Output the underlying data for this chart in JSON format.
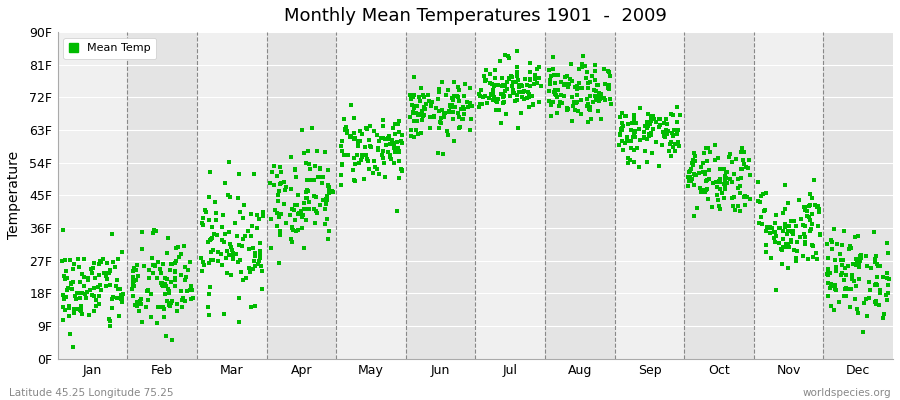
{
  "title": "Monthly Mean Temperatures 1901  -  2009",
  "ylabel": "Temperature",
  "subtitle_left": "Latitude 45.25 Longitude 75.25",
  "subtitle_right": "worldspecies.org",
  "legend_label": "Mean Temp",
  "dot_color": "#00BB00",
  "dot_size": 5,
  "background_color": "#FFFFFF",
  "plot_bg_color": "#F0F0F0",
  "band_colors_even": "#F0F0F0",
  "band_colors_odd": "#E4E4E4",
  "ytick_labels": [
    "0F",
    "9F",
    "18F",
    "27F",
    "36F",
    "45F",
    "54F",
    "63F",
    "72F",
    "81F",
    "90F"
  ],
  "ytick_values": [
    0,
    9,
    18,
    27,
    36,
    45,
    54,
    63,
    72,
    81,
    90
  ],
  "ylim": [
    0,
    90
  ],
  "months": [
    "Jan",
    "Feb",
    "Mar",
    "Apr",
    "May",
    "Jun",
    "Jul",
    "Aug",
    "Sep",
    "Oct",
    "Nov",
    "Dec"
  ],
  "num_years": 109,
  "seed": 42,
  "mean_temps_f": [
    19,
    20,
    32,
    45,
    58,
    68,
    75,
    73,
    62,
    50,
    36,
    23
  ],
  "spread_f": [
    6,
    7,
    8,
    7,
    5,
    4,
    4,
    4,
    4,
    5,
    6,
    6
  ]
}
